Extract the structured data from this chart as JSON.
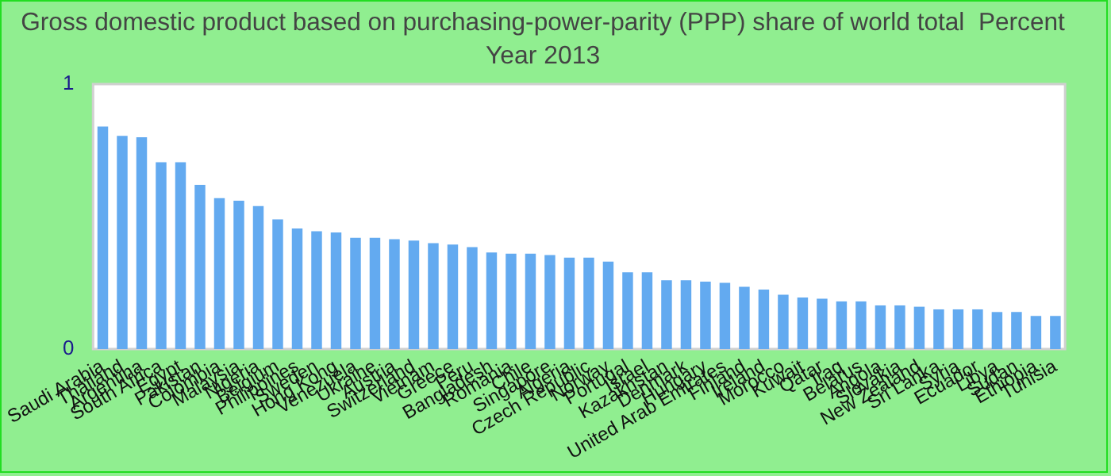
{
  "chart_data": {
    "type": "bar",
    "title": "Gross domestic product based on purchasing-power-parity (PPP) share of world total  Percent",
    "subtitle": "Year 2013",
    "categories": [
      "Saudi Arabia",
      "Thailand",
      "Argentina",
      "South Africa",
      "Egypt",
      "Pakistan",
      "Colombia",
      "Malaysia",
      "Nigeria",
      "Belgium",
      "Philippines",
      "Sweden",
      "Hong Kong",
      "Venezuela",
      "Ukraine",
      "Austria",
      "Switzerland",
      "Vietnam",
      "Greece",
      "Peru",
      "Bangladesh",
      "Romania",
      "Chile",
      "Singapore",
      "Algeria",
      "Czech Republic",
      "Norway",
      "Portugal",
      "Israel",
      "Kazakhstan",
      "Denmark",
      "Hungary",
      "United Arab Emirates",
      "Finland",
      "Ireland",
      "Morocco",
      "Kuwait",
      "Qatar",
      "Iraq",
      "Belarus",
      "Angola",
      "Slovakia",
      "New Zealand",
      "Sri Lanka",
      "Syria",
      "Ecuador",
      "Libya",
      "Sudan",
      "Ethiopia",
      "Tunisia"
    ],
    "values": [
      0.84,
      0.805,
      0.8,
      0.705,
      0.705,
      0.62,
      0.57,
      0.56,
      0.54,
      0.49,
      0.455,
      0.445,
      0.44,
      0.42,
      0.42,
      0.415,
      0.41,
      0.4,
      0.395,
      0.385,
      0.365,
      0.36,
      0.36,
      0.355,
      0.345,
      0.345,
      0.33,
      0.29,
      0.29,
      0.26,
      0.26,
      0.255,
      0.25,
      0.235,
      0.225,
      0.205,
      0.195,
      0.19,
      0.18,
      0.18,
      0.165,
      0.165,
      0.16,
      0.15,
      0.15,
      0.15,
      0.14,
      0.14,
      0.125,
      0.125
    ],
    "color": "#63aaf0",
    "ylim": [
      0,
      1
    ],
    "yticks": [
      0,
      1
    ],
    "grid": false,
    "legend": false
  }
}
